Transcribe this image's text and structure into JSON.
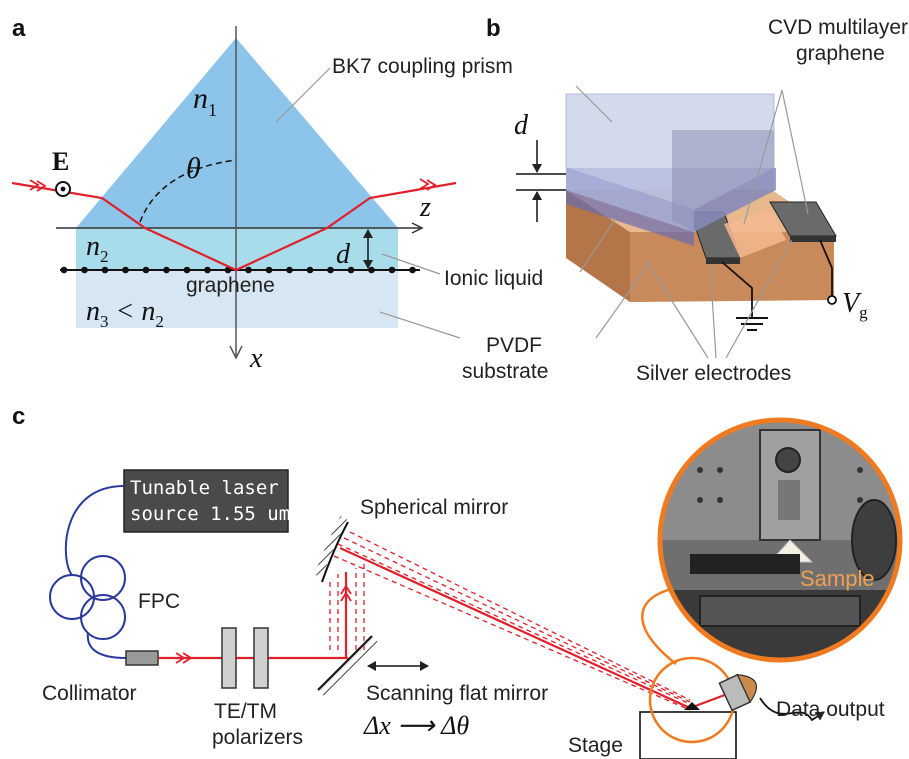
{
  "panels": {
    "a": {
      "letter": "a",
      "prism_label": "BK7 coupling prism",
      "n1": "n",
      "n1_sub": "1",
      "n2": "n",
      "n2_sub": "2",
      "n3_expr": "n",
      "n3_sub": "3",
      "n3_rest": " < n",
      "n3_rest_sub": "2",
      "theta": "θ",
      "E": "E",
      "z": "z",
      "x": "x",
      "d": "d",
      "graphene": "graphene",
      "ionic_liquid": "Ionic liquid",
      "pvdf_line1": "PVDF",
      "pvdf_line2": "substrate"
    },
    "b": {
      "letter": "b",
      "cvd_line1": "CVD multilayer",
      "cvd_line2": "graphene",
      "d": "d",
      "Vg": "V",
      "Vg_sub": "g",
      "silver": "Silver electrodes"
    },
    "c": {
      "letter": "c",
      "laser_line1": "Tunable laser",
      "laser_line2": "source 1.55 um",
      "fpc": "FPC",
      "collimator": "Collimator",
      "pol_line1": "TE/TM",
      "pol_line2": "polarizers",
      "spherical": "Spherical mirror",
      "flat": "Scanning flat mirror",
      "delta": "Δx ⟶ Δθ",
      "stage": "Stage",
      "sample": "Sample",
      "data_output": "Data output"
    }
  },
  "colors": {
    "prism": "#8cc4ea",
    "ionic": "#a9dcea",
    "substrate": "#d6e6f2",
    "beam": "#e0202a",
    "fiber": "#2a3a9a",
    "orange": "#f07a20",
    "bronze": "#c88a5a"
  }
}
